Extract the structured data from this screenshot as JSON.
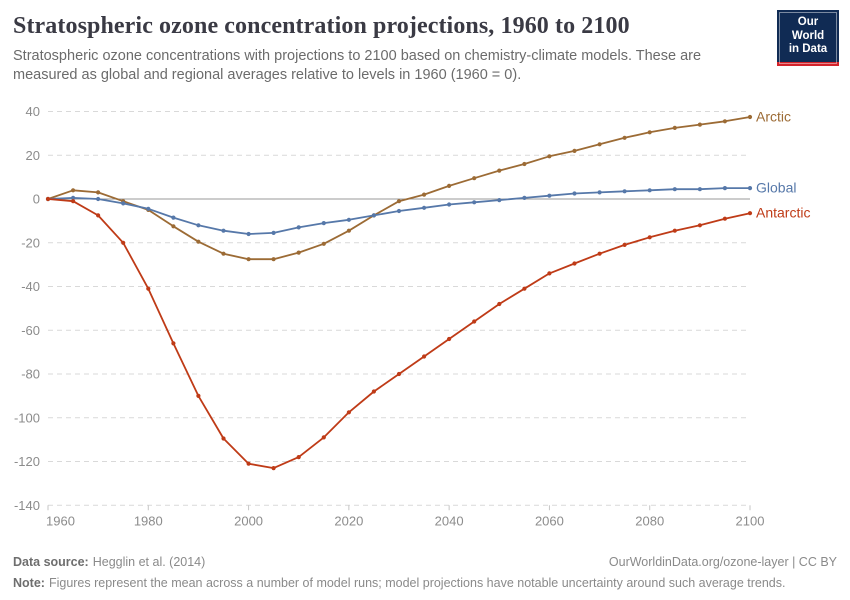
{
  "header": {
    "title": "Stratospheric ozone concentration projections, 1960 to 2100",
    "subtitle": "Stratospheric ozone concentrations with projections to 2100 based on chemistry-climate models. These are measured as global and regional averages relative to levels in 1960 (1960 = 0).",
    "logo": {
      "line1": "Our World",
      "line2": "in Data",
      "bg_color": "#102B54",
      "accent_color": "#D3232B"
    }
  },
  "chart_data": {
    "type": "line",
    "title": "Stratospheric ozone concentration projections, 1960 to 2100",
    "xlabel": "",
    "ylabel": "",
    "xlim": [
      1960,
      2100
    ],
    "ylim": [
      -140,
      40
    ],
    "x_ticks": [
      1960,
      1980,
      2000,
      2020,
      2040,
      2060,
      2080,
      2100
    ],
    "y_ticks": [
      40,
      20,
      0,
      -20,
      -40,
      -60,
      -80,
      -100,
      -120,
      -140
    ],
    "grid": "horizontal-dashed",
    "legend_position": "end-of-line-labels",
    "x": [
      1960,
      1965,
      1970,
      1975,
      1980,
      1985,
      1990,
      1995,
      2000,
      2005,
      2010,
      2015,
      2020,
      2025,
      2030,
      2035,
      2040,
      2045,
      2050,
      2055,
      2060,
      2065,
      2070,
      2075,
      2080,
      2085,
      2090,
      2095,
      2100
    ],
    "series": [
      {
        "name": "Arctic",
        "color": "#9C6B35",
        "values": [
          0,
          4,
          3,
          -1,
          -5,
          -12.5,
          -19.5,
          -25,
          -27.5,
          -27.5,
          -24.5,
          -20.5,
          -14.5,
          -7.5,
          -1,
          2,
          6,
          9.5,
          13,
          16,
          19.5,
          22,
          25,
          28,
          30.5,
          32.5,
          34,
          35.5,
          37.5
        ]
      },
      {
        "name": "Global",
        "color": "#5678A9",
        "values": [
          0,
          0.5,
          0,
          -2,
          -4.5,
          -8.5,
          -12,
          -14.5,
          -16,
          -15.5,
          -13,
          -11,
          -9.5,
          -7.5,
          -5.5,
          -4,
          -2.5,
          -1.5,
          -0.5,
          0.5,
          1.5,
          2.5,
          3,
          3.5,
          4,
          4.5,
          4.5,
          5,
          5
        ]
      },
      {
        "name": "Antarctic",
        "color": "#BF3B17",
        "values": [
          0,
          -1,
          -7.5,
          -20,
          -41,
          -66,
          -90,
          -109.5,
          -121,
          -123,
          -118,
          -109,
          -97.5,
          -88,
          -80,
          -72,
          -64,
          -56,
          -48,
          -41,
          -34,
          -29.5,
          -25,
          -21,
          -17.5,
          -14.5,
          -12,
          -9,
          -6.5
        ]
      }
    ],
    "colors": {
      "grid": "#d9d9d9",
      "zero_line": "#9a9a9a",
      "axis_text": "#8c8c8c",
      "tick_mark": "#c6c6c6"
    }
  },
  "footer": {
    "source_label": "Data source:",
    "source_value": "Hegglin et al. (2014)",
    "link": "OurWorldinData.org/ozone-layer | CC BY",
    "note_label": "Note:",
    "note_value": "Figures represent the mean across a number of model runs; model projections have notable uncertainty around such average trends."
  }
}
